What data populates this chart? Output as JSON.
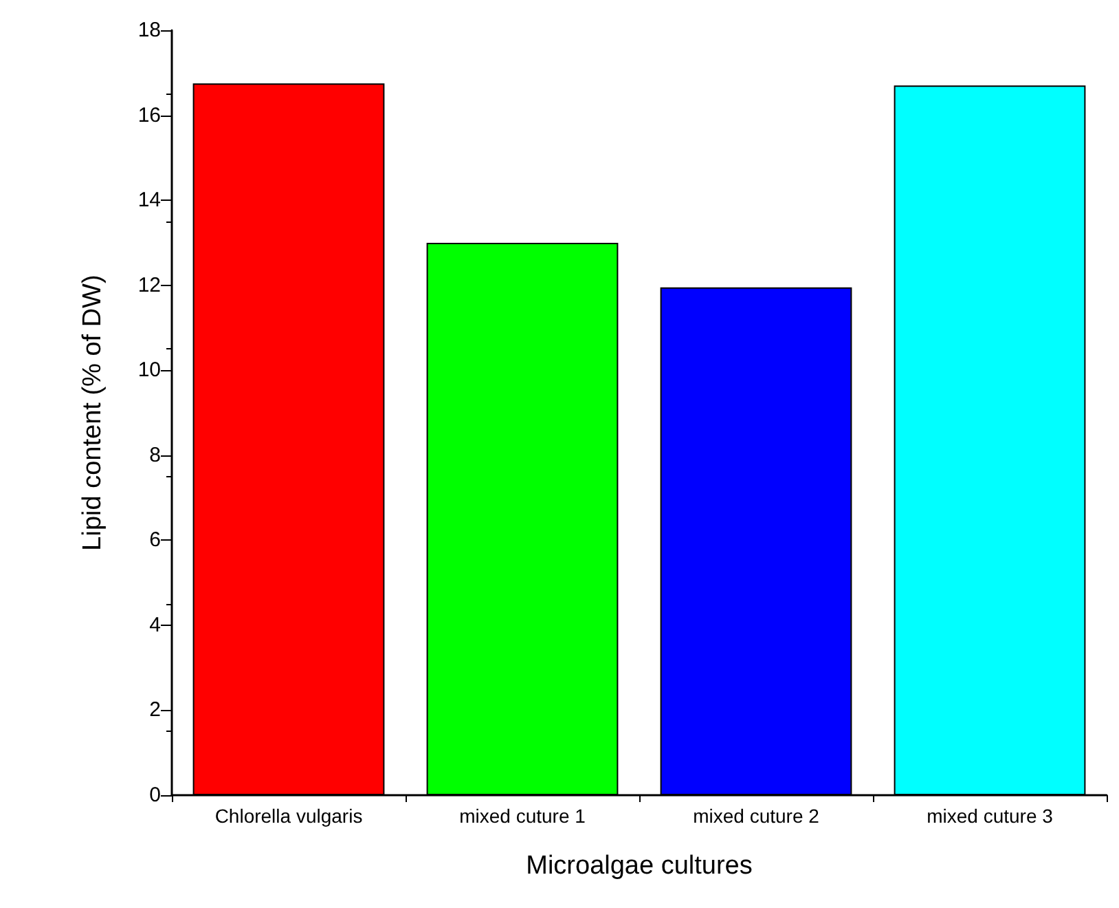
{
  "chart_data": {
    "type": "bar",
    "categories": [
      "Chlorella vulgaris",
      "mixed cuture 1",
      "mixed cuture 2",
      "mixed cuture 3"
    ],
    "values": [
      16.75,
      13.0,
      11.95,
      16.7
    ],
    "colors": [
      "#ff0000",
      "#00ff00",
      "#0000ff",
      "#00ffff"
    ],
    "xlabel": "Microalgae cultures",
    "ylabel": "Lipid content (% of DW)",
    "ylim": [
      0,
      18
    ],
    "yticks": [
      0,
      2,
      4,
      6,
      8,
      10,
      12,
      14,
      16,
      18
    ],
    "grid": false
  }
}
